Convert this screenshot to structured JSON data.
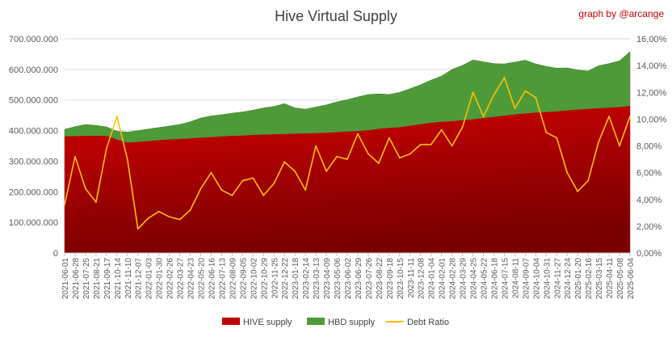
{
  "chart_data": {
    "type": "area",
    "title": "Hive Virtual Supply",
    "credit": "graph by @arcange",
    "y_left": {
      "ticks": [
        "0",
        "100.000.000",
        "200.000.000",
        "300.000.000",
        "400.000.000",
        "500.000.000",
        "600.000.000",
        "700.000.000"
      ],
      "ylim": [
        0,
        700000000
      ]
    },
    "y_right": {
      "ticks": [
        "0,00%",
        "2,00%",
        "4,00%",
        "6,00%",
        "8,00%",
        "10,00%",
        "12,00%",
        "14,00%",
        "16,00%"
      ],
      "ylim": [
        0,
        16
      ]
    },
    "x_ticks": [
      "2021-06-01",
      "2021-06-28",
      "2021-07-25",
      "2021-08-21",
      "2021-09-17",
      "2021-10-14",
      "2021-11-10",
      "2021-12-07",
      "2022-01-03",
      "2022-01-30",
      "2022-02-26",
      "2022-03-27",
      "2022-04-23",
      "2022-05-20",
      "2022-06-16",
      "2022-07-13",
      "2022-08-09",
      "2022-09-05",
      "2022-10-02",
      "2022-10-29",
      "2022-11-25",
      "2022-12-22",
      "2023-01-18",
      "2023-02-14",
      "2023-03-13",
      "2023-04-09",
      "2023-05-06",
      "2023-06-02",
      "2023-06-29",
      "2023-07-26",
      "2023-08-22",
      "2023-09-18",
      "2023-10-15",
      "2023-11-11",
      "2023-12-08",
      "2024-01-04",
      "2024-02-01",
      "2024-02-28",
      "2024-03-29",
      "2024-04-25",
      "2024-05-22",
      "2024-06-18",
      "2024-07-15",
      "2024-08-11",
      "2024-09-07",
      "2024-10-04",
      "2024-10-31",
      "2024-11-27",
      "2024-12-24",
      "2025-01-20",
      "2025-02-16",
      "2025-03-15",
      "2025-04-11",
      "2025-05-08",
      "2025-06-04"
    ],
    "series": [
      {
        "name": "HIVE supply",
        "color": "#c00000",
        "values": [
          380000000,
          381000000,
          382000000,
          382000000,
          382000000,
          370000000,
          360000000,
          362000000,
          365000000,
          368000000,
          370000000,
          372000000,
          374000000,
          376000000,
          378000000,
          380000000,
          382000000,
          383000000,
          385000000,
          386000000,
          387000000,
          388000000,
          389000000,
          390000000,
          391000000,
          392000000,
          394000000,
          396000000,
          398000000,
          400000000,
          405000000,
          408000000,
          410000000,
          415000000,
          420000000,
          425000000,
          428000000,
          430000000,
          433000000,
          436000000,
          440000000,
          444000000,
          448000000,
          452000000,
          455000000,
          458000000,
          460000000,
          462000000,
          465000000,
          468000000,
          470000000,
          472000000,
          474000000,
          476000000,
          480000000
        ]
      },
      {
        "name": "HBD supply",
        "color": "#4e9a38",
        "values": [
          24000000,
          32000000,
          38000000,
          35000000,
          30000000,
          28000000,
          35000000,
          38000000,
          40000000,
          42000000,
          45000000,
          48000000,
          55000000,
          65000000,
          70000000,
          72000000,
          75000000,
          78000000,
          82000000,
          88000000,
          92000000,
          100000000,
          85000000,
          80000000,
          86000000,
          92000000,
          100000000,
          105000000,
          112000000,
          118000000,
          115000000,
          110000000,
          115000000,
          122000000,
          130000000,
          140000000,
          150000000,
          170000000,
          180000000,
          195000000,
          185000000,
          175000000,
          170000000,
          172000000,
          175000000,
          160000000,
          150000000,
          142000000,
          140000000,
          130000000,
          125000000,
          140000000,
          145000000,
          152000000,
          178000000
        ]
      },
      {
        "name": "Debt Ratio",
        "color": "#ffc000",
        "axis": "right",
        "values": [
          3.6,
          7.2,
          4.8,
          3.8,
          7.8,
          10.2,
          7.0,
          1.8,
          2.6,
          3.1,
          2.7,
          2.5,
          3.2,
          4.8,
          6.0,
          4.7,
          4.3,
          5.4,
          5.6,
          4.3,
          5.2,
          6.8,
          6.1,
          4.7,
          8.0,
          6.1,
          7.2,
          7.0,
          8.9,
          7.4,
          6.7,
          8.6,
          7.1,
          7.4,
          8.1,
          8.1,
          9.2,
          8.0,
          9.4,
          12.0,
          10.2,
          11.8,
          13.1,
          10.8,
          12.1,
          11.6,
          9.0,
          8.6,
          6.0,
          4.6,
          5.4,
          8.3,
          10.2,
          8.0,
          10.2
        ]
      }
    ],
    "legend": [
      "HIVE supply",
      "HBD supply",
      "Debt Ratio"
    ],
    "legend_placement": "bottom",
    "grid": true
  }
}
